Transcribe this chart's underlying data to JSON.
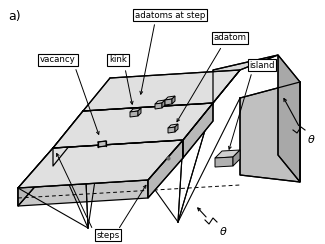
{
  "title_label": "a)",
  "labels": {
    "adatoms_at_step": "adatoms at step",
    "adatom": "adatom",
    "vacancy": "vacancy",
    "kink": "kink",
    "island": "island",
    "steps": "steps",
    "theta": "θ"
  },
  "bg_color": "#ffffff",
  "line_color": "#000000",
  "terrace_fill": "#e0e0e0",
  "step_fill": "#b8b8b8",
  "box_fill": "#ffffff",
  "cube_top": "#d0d0d0",
  "cube_front": "#b0b0b0",
  "cube_side": "#989898"
}
